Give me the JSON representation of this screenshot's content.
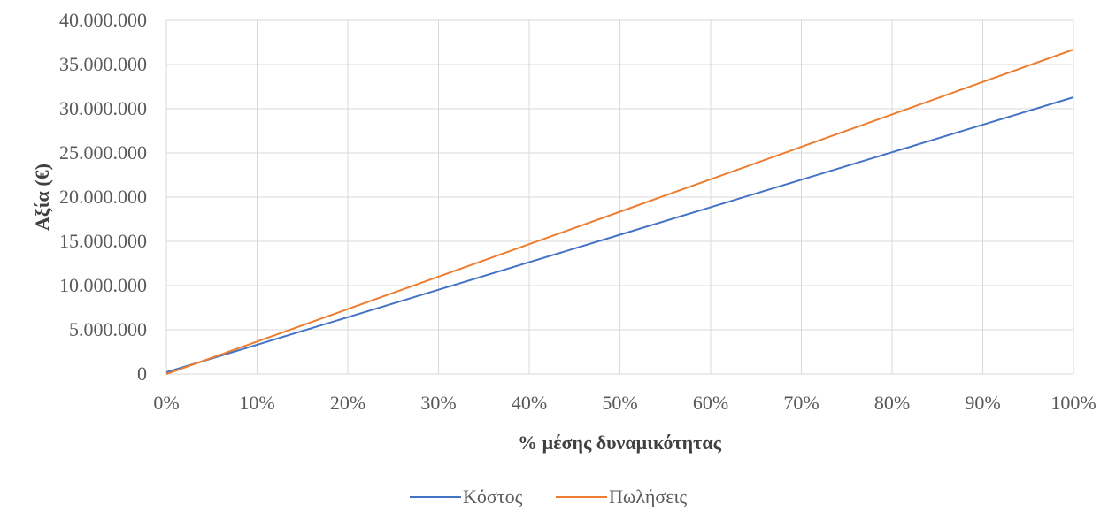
{
  "chart_data": {
    "type": "line",
    "title": "",
    "xlabel": "% μέσης δυναμικότητας",
    "ylabel": "Αξία (€)",
    "x": [
      0,
      10,
      20,
      30,
      40,
      50,
      60,
      70,
      80,
      90,
      100
    ],
    "x_tick_labels": [
      "0%",
      "10%",
      "20%",
      "30%",
      "40%",
      "50%",
      "60%",
      "70%",
      "80%",
      "90%",
      "100%"
    ],
    "xlim": [
      0,
      100
    ],
    "ylim": [
      0,
      40000000
    ],
    "y_ticks": [
      0,
      5000000,
      10000000,
      15000000,
      20000000,
      25000000,
      30000000,
      35000000,
      40000000
    ],
    "y_tick_labels": [
      "0",
      "5.000.000",
      "10.000.000",
      "15.000.000",
      "20.000.000",
      "25.000.000",
      "30.000.000",
      "35.000.000",
      "40.000.000"
    ],
    "series": [
      {
        "name": "Κόστος",
        "color": "#4472C4",
        "values": [
          200000,
          3310000,
          6420000,
          9530000,
          12640000,
          15750000,
          18860000,
          21970000,
          25080000,
          28190000,
          31300000
        ]
      },
      {
        "name": "Πωλήσεις",
        "color": "#ED7D31",
        "values": [
          0,
          3670000,
          7340000,
          11010000,
          14680000,
          18350000,
          22020000,
          25690000,
          29360000,
          33030000,
          36700000
        ]
      }
    ],
    "grid": true,
    "gridline_color": "#D9D9D9",
    "legend_position": "bottom"
  }
}
